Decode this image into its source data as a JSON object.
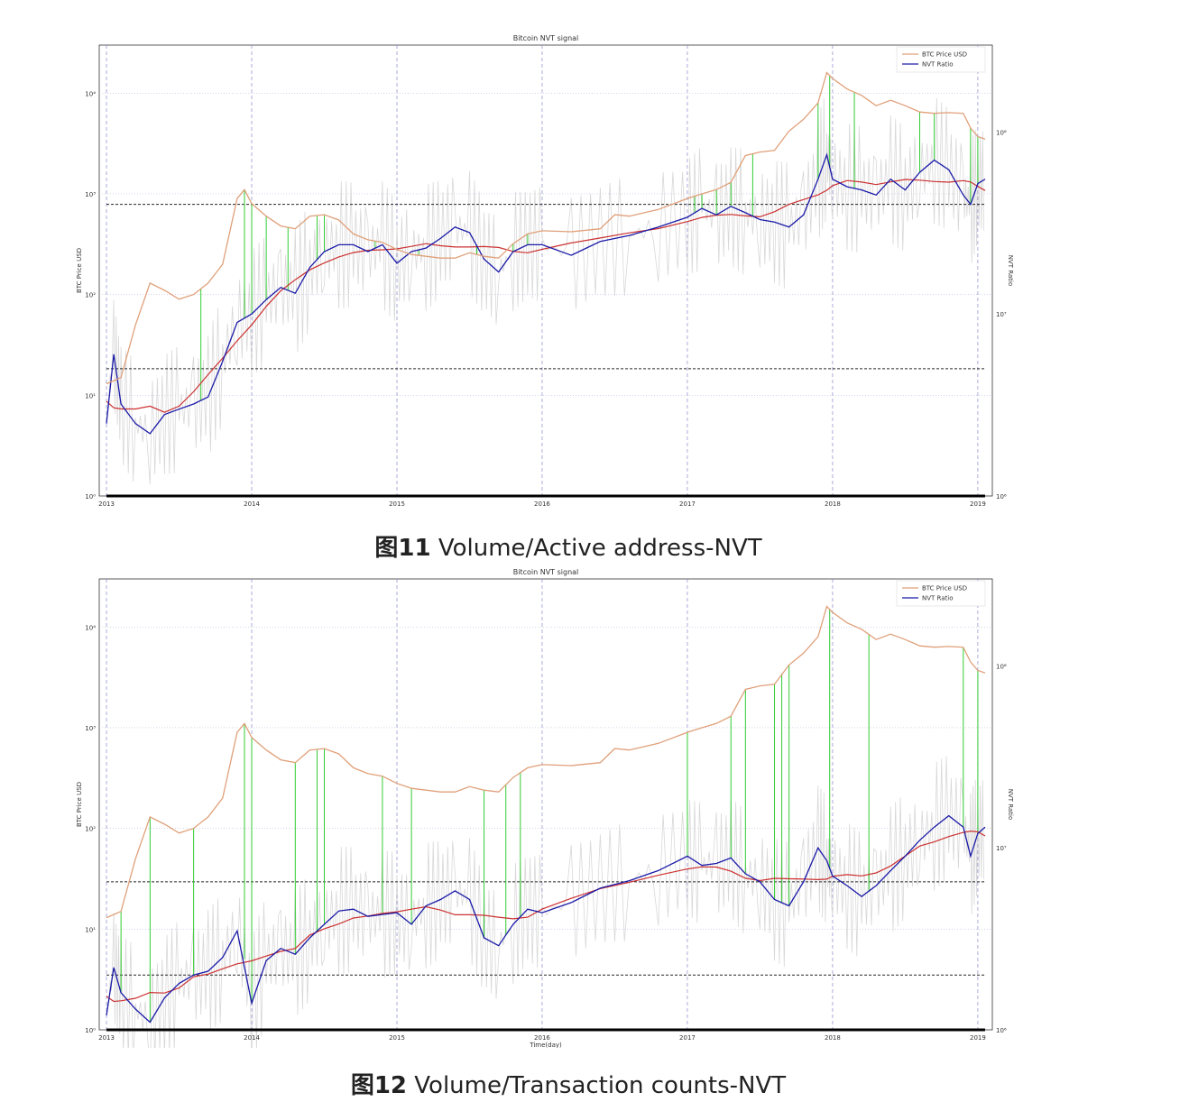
{
  "figures": [
    {
      "caption_number": "图11",
      "caption_text": " Volume/Active address-NVT"
    },
    {
      "caption_number": "图12",
      "caption_text": " Volume/Transaction counts-NVT"
    }
  ],
  "colors": {
    "price": "#e0a07a",
    "nvt": "#1a1aa8",
    "nvt_ma": "#cc3030",
    "raw": "#d8d8d8",
    "signal": "#33cc33",
    "year_line": "#8888cc",
    "threshold": "#222222"
  },
  "chart_data": [
    {
      "type": "line",
      "title": "Bitcoin NVT signal",
      "xlabel": "",
      "ylabel": "BTC Price USD",
      "y2label": "NVT Ratio",
      "x_ticks": [
        "2013",
        "2014",
        "2015",
        "2016",
        "2017",
        "2018",
        "2019"
      ],
      "y_ticks": [
        "10⁰",
        "10¹",
        "10²",
        "10³",
        "10⁴"
      ],
      "y2_ticks": [
        "10⁶",
        "10⁷",
        "10⁸"
      ],
      "ylim": [
        1,
        30000
      ],
      "y2lim": [
        1000000,
        300000000
      ],
      "log_scale": true,
      "legend": [
        "BTC Price USD",
        "NVT Ratio"
      ],
      "legend_position": "top-right",
      "grid": false,
      "series": [
        {
          "name": "BTC Price USD",
          "x": [
            2013.0,
            2013.1,
            2013.2,
            2013.3,
            2013.4,
            2013.5,
            2013.6,
            2013.7,
            2013.8,
            2013.9,
            2013.95,
            2014.0,
            2014.1,
            2014.2,
            2014.3,
            2014.4,
            2014.5,
            2014.6,
            2014.7,
            2014.8,
            2014.9,
            2015.0,
            2015.1,
            2015.2,
            2015.3,
            2015.4,
            2015.5,
            2015.6,
            2015.7,
            2015.8,
            2015.9,
            2016.0,
            2016.2,
            2016.4,
            2016.5,
            2016.6,
            2016.8,
            2017.0,
            2017.1,
            2017.2,
            2017.3,
            2017.4,
            2017.5,
            2017.6,
            2017.7,
            2017.8,
            2017.9,
            2017.96,
            2018.0,
            2018.1,
            2018.2,
            2018.3,
            2018.4,
            2018.5,
            2018.6,
            2018.7,
            2018.8,
            2018.9,
            2018.95,
            2019.0,
            2019.05
          ],
          "values": [
            13,
            15,
            50,
            130,
            110,
            90,
            100,
            130,
            200,
            900,
            1100,
            800,
            600,
            480,
            450,
            600,
            620,
            550,
            400,
            350,
            330,
            280,
            250,
            240,
            230,
            230,
            260,
            240,
            230,
            320,
            400,
            430,
            420,
            450,
            620,
            600,
            700,
            900,
            1000,
            1100,
            1300,
            2400,
            2600,
            2700,
            4200,
            5500,
            8000,
            16000,
            14000,
            11000,
            9500,
            7500,
            8500,
            7500,
            6500,
            6300,
            6400,
            6300,
            4500,
            3700,
            3500
          ]
        },
        {
          "name": "NVT Ratio",
          "x": [
            2013.0,
            2013.05,
            2013.1,
            2013.2,
            2013.3,
            2013.4,
            2013.5,
            2013.6,
            2013.7,
            2013.8,
            2013.9,
            2014.0,
            2014.1,
            2014.2,
            2014.3,
            2014.4,
            2014.5,
            2014.6,
            2014.7,
            2014.8,
            2014.9,
            2015.0,
            2015.1,
            2015.2,
            2015.3,
            2015.4,
            2015.5,
            2015.6,
            2015.7,
            2015.8,
            2015.9,
            2016.0,
            2016.2,
            2016.4,
            2016.6,
            2016.8,
            2017.0,
            2017.1,
            2017.2,
            2017.3,
            2017.4,
            2017.5,
            2017.6,
            2017.7,
            2017.8,
            2017.9,
            2017.96,
            2018.0,
            2018.1,
            2018.2,
            2018.3,
            2018.4,
            2018.5,
            2018.6,
            2018.7,
            2018.8,
            2018.9,
            2018.95,
            2019.0,
            2019.05
          ],
          "values": [
            2500000,
            6000000,
            3200000,
            2500000,
            2200000,
            2800000,
            3000000,
            3200000,
            3500000,
            5500000,
            9000000,
            10000000,
            12000000,
            14000000,
            13000000,
            18000000,
            22000000,
            24000000,
            24000000,
            22000000,
            24000000,
            19000000,
            22000000,
            23000000,
            26000000,
            30000000,
            28000000,
            20000000,
            17000000,
            22000000,
            24000000,
            24000000,
            21000000,
            25000000,
            27000000,
            30000000,
            34000000,
            38000000,
            35000000,
            39000000,
            36000000,
            33000000,
            32000000,
            30000000,
            35000000,
            55000000,
            75000000,
            55000000,
            50000000,
            48000000,
            45000000,
            55000000,
            48000000,
            60000000,
            70000000,
            62000000,
            45000000,
            40000000,
            52000000,
            55000000
          ]
        }
      ],
      "horizontal_lines_nvt": [
        40000000,
        5000000
      ]
    },
    {
      "type": "line",
      "title": "Bitcoin NVT signal",
      "xlabel": "Time(day)",
      "ylabel": "BTC Price USD",
      "y2label": "NVT Ratio",
      "x_ticks": [
        "2013",
        "2014",
        "2015",
        "2016",
        "2017",
        "2018",
        "2019"
      ],
      "y_ticks": [
        "10⁰",
        "10¹",
        "10²",
        "10³",
        "10⁴"
      ],
      "y2_ticks": [
        "10⁶",
        "10⁷",
        "10⁸"
      ],
      "ylim": [
        1,
        30000
      ],
      "y2lim": [
        1000000,
        300000000
      ],
      "log_scale": true,
      "legend": [
        "BTC Price USD",
        "NVT Ratio"
      ],
      "legend_position": "top-right",
      "grid": false,
      "series": [
        {
          "name": "BTC Price USD",
          "x": [
            2013.0,
            2013.1,
            2013.2,
            2013.3,
            2013.4,
            2013.5,
            2013.6,
            2013.7,
            2013.8,
            2013.9,
            2013.95,
            2014.0,
            2014.1,
            2014.2,
            2014.3,
            2014.4,
            2014.5,
            2014.6,
            2014.7,
            2014.8,
            2014.9,
            2015.0,
            2015.1,
            2015.2,
            2015.3,
            2015.4,
            2015.5,
            2015.6,
            2015.7,
            2015.8,
            2015.9,
            2016.0,
            2016.2,
            2016.4,
            2016.5,
            2016.6,
            2016.8,
            2017.0,
            2017.1,
            2017.2,
            2017.3,
            2017.4,
            2017.5,
            2017.6,
            2017.7,
            2017.8,
            2017.9,
            2017.96,
            2018.0,
            2018.1,
            2018.2,
            2018.3,
            2018.4,
            2018.5,
            2018.6,
            2018.7,
            2018.8,
            2018.9,
            2018.95,
            2019.0,
            2019.05
          ],
          "values": [
            13,
            15,
            50,
            130,
            110,
            90,
            100,
            130,
            200,
            900,
            1100,
            800,
            600,
            480,
            450,
            600,
            620,
            550,
            400,
            350,
            330,
            280,
            250,
            240,
            230,
            230,
            260,
            240,
            230,
            320,
            400,
            430,
            420,
            450,
            620,
            600,
            700,
            900,
            1000,
            1100,
            1300,
            2400,
            2600,
            2700,
            4200,
            5500,
            8000,
            16000,
            14000,
            11000,
            9500,
            7500,
            8500,
            7500,
            6500,
            6300,
            6400,
            6300,
            4500,
            3700,
            3500
          ]
        },
        {
          "name": "NVT Ratio",
          "x": [
            2013.0,
            2013.05,
            2013.1,
            2013.2,
            2013.3,
            2013.4,
            2013.5,
            2013.6,
            2013.7,
            2013.8,
            2013.9,
            2014.0,
            2014.1,
            2014.2,
            2014.3,
            2014.4,
            2014.5,
            2014.6,
            2014.7,
            2014.8,
            2014.9,
            2015.0,
            2015.1,
            2015.2,
            2015.3,
            2015.4,
            2015.5,
            2015.6,
            2015.7,
            2015.8,
            2015.9,
            2016.0,
            2016.2,
            2016.4,
            2016.6,
            2016.8,
            2017.0,
            2017.1,
            2017.2,
            2017.3,
            2017.4,
            2017.5,
            2017.6,
            2017.7,
            2017.8,
            2017.9,
            2017.96,
            2018.0,
            2018.1,
            2018.2,
            2018.3,
            2018.4,
            2018.5,
            2018.6,
            2018.7,
            2018.8,
            2018.9,
            2018.95,
            2019.0,
            2019.05
          ],
          "values": [
            1200000,
            2200000,
            1600000,
            1300000,
            1100000,
            1500000,
            1800000,
            2000000,
            2100000,
            2500000,
            3500000,
            1400000,
            2400000,
            2800000,
            2600000,
            3200000,
            3800000,
            4500000,
            4600000,
            4200000,
            4300000,
            4400000,
            3800000,
            4800000,
            5200000,
            5800000,
            5200000,
            3200000,
            2900000,
            3800000,
            4600000,
            4400000,
            5000000,
            6000000,
            6600000,
            7500000,
            9000000,
            8000000,
            8200000,
            8800000,
            7200000,
            6500000,
            5200000,
            4800000,
            6500000,
            10000000,
            8500000,
            7000000,
            6200000,
            5400000,
            6200000,
            7500000,
            9000000,
            11000000,
            13000000,
            15000000,
            13000000,
            9000000,
            12000000,
            13000000
          ]
        }
      ],
      "horizontal_lines_nvt": [
        6500000,
        2000000
      ]
    }
  ]
}
